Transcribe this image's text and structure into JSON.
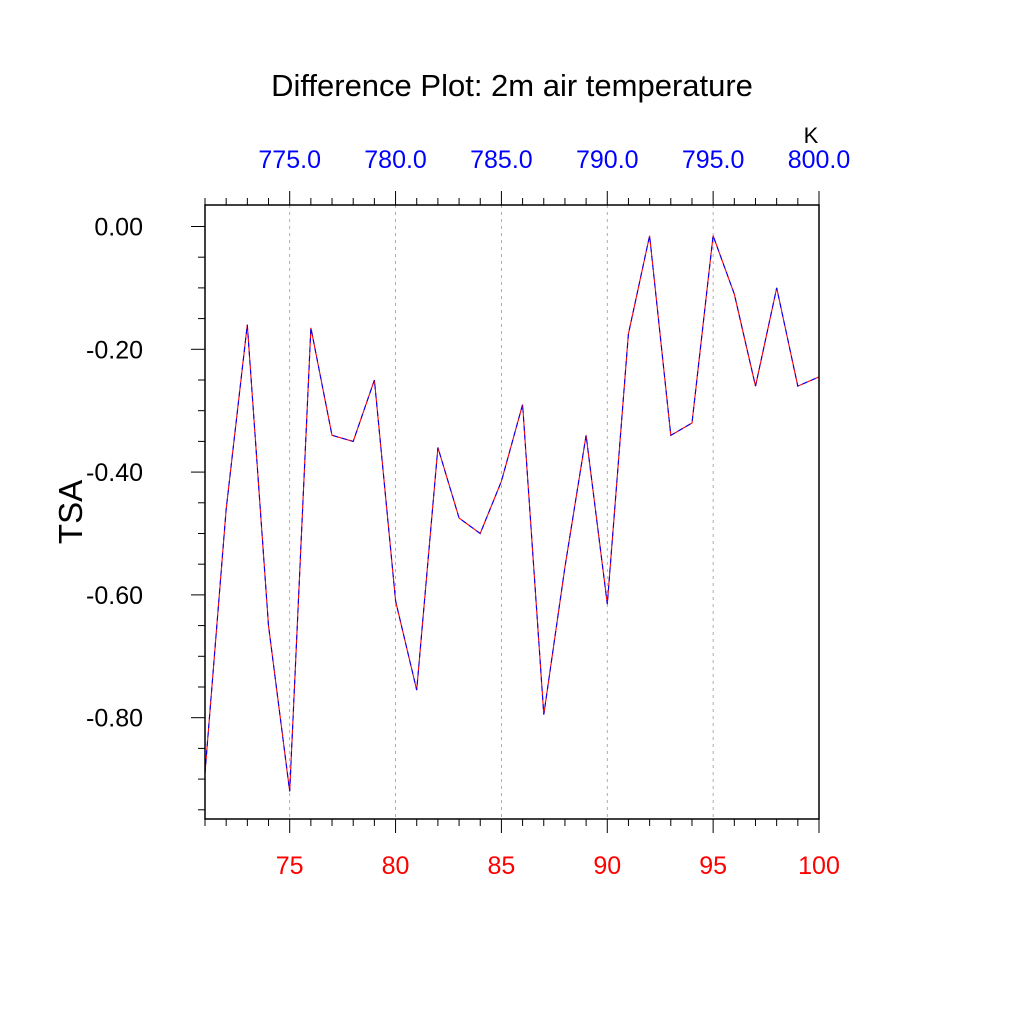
{
  "chart_data": {
    "type": "line",
    "title": "Difference Plot: 2m air temperature",
    "ylabel": "TSA",
    "top_axis_unit": "K",
    "xlim": [
      71,
      100
    ],
    "ylim": [
      -0.965,
      0.035
    ],
    "top_xlim": [
      771,
      800
    ],
    "x_ticks": [
      75,
      80,
      85,
      90,
      95,
      100
    ],
    "x_tick_labels": [
      "75",
      "80",
      "85",
      "90",
      "95",
      "100"
    ],
    "top_ticks": [
      775,
      780,
      785,
      790,
      795,
      800
    ],
    "top_tick_labels": [
      "775.0",
      "780.0",
      "785.0",
      "790.0",
      "795.0",
      "800.0"
    ],
    "y_ticks": [
      0,
      -0.2,
      -0.4,
      -0.6,
      -0.8
    ],
    "y_tick_labels": [
      "0.00",
      "-0.20",
      "-0.40",
      "-0.60",
      "-0.80"
    ],
    "grid": "dashed vertical lines at major x ticks",
    "colors": {
      "bottom_axis_labels": "#ff0000",
      "top_axis_labels": "#0000ff",
      "line_a": "#ff0000",
      "line_b": "#0000ff"
    },
    "x": [
      71,
      72,
      73,
      74,
      75,
      76,
      77,
      78,
      79,
      80,
      81,
      82,
      83,
      84,
      85,
      86,
      87,
      88,
      89,
      90,
      91,
      92,
      93,
      94,
      95,
      96,
      97,
      98,
      99,
      100
    ],
    "series": [
      {
        "values": [
          -0.89,
          -0.46,
          -0.16,
          -0.65,
          -0.92,
          -0.165,
          -0.34,
          -0.35,
          -0.25,
          -0.61,
          -0.755,
          -0.36,
          -0.475,
          -0.5,
          -0.415,
          -0.29,
          -0.795,
          -0.555,
          -0.34,
          -0.615,
          -0.175,
          -0.015,
          -0.34,
          -0.32,
          -0.015,
          -0.11,
          -0.26,
          -0.1,
          -0.26,
          -0.245
        ]
      }
    ]
  }
}
